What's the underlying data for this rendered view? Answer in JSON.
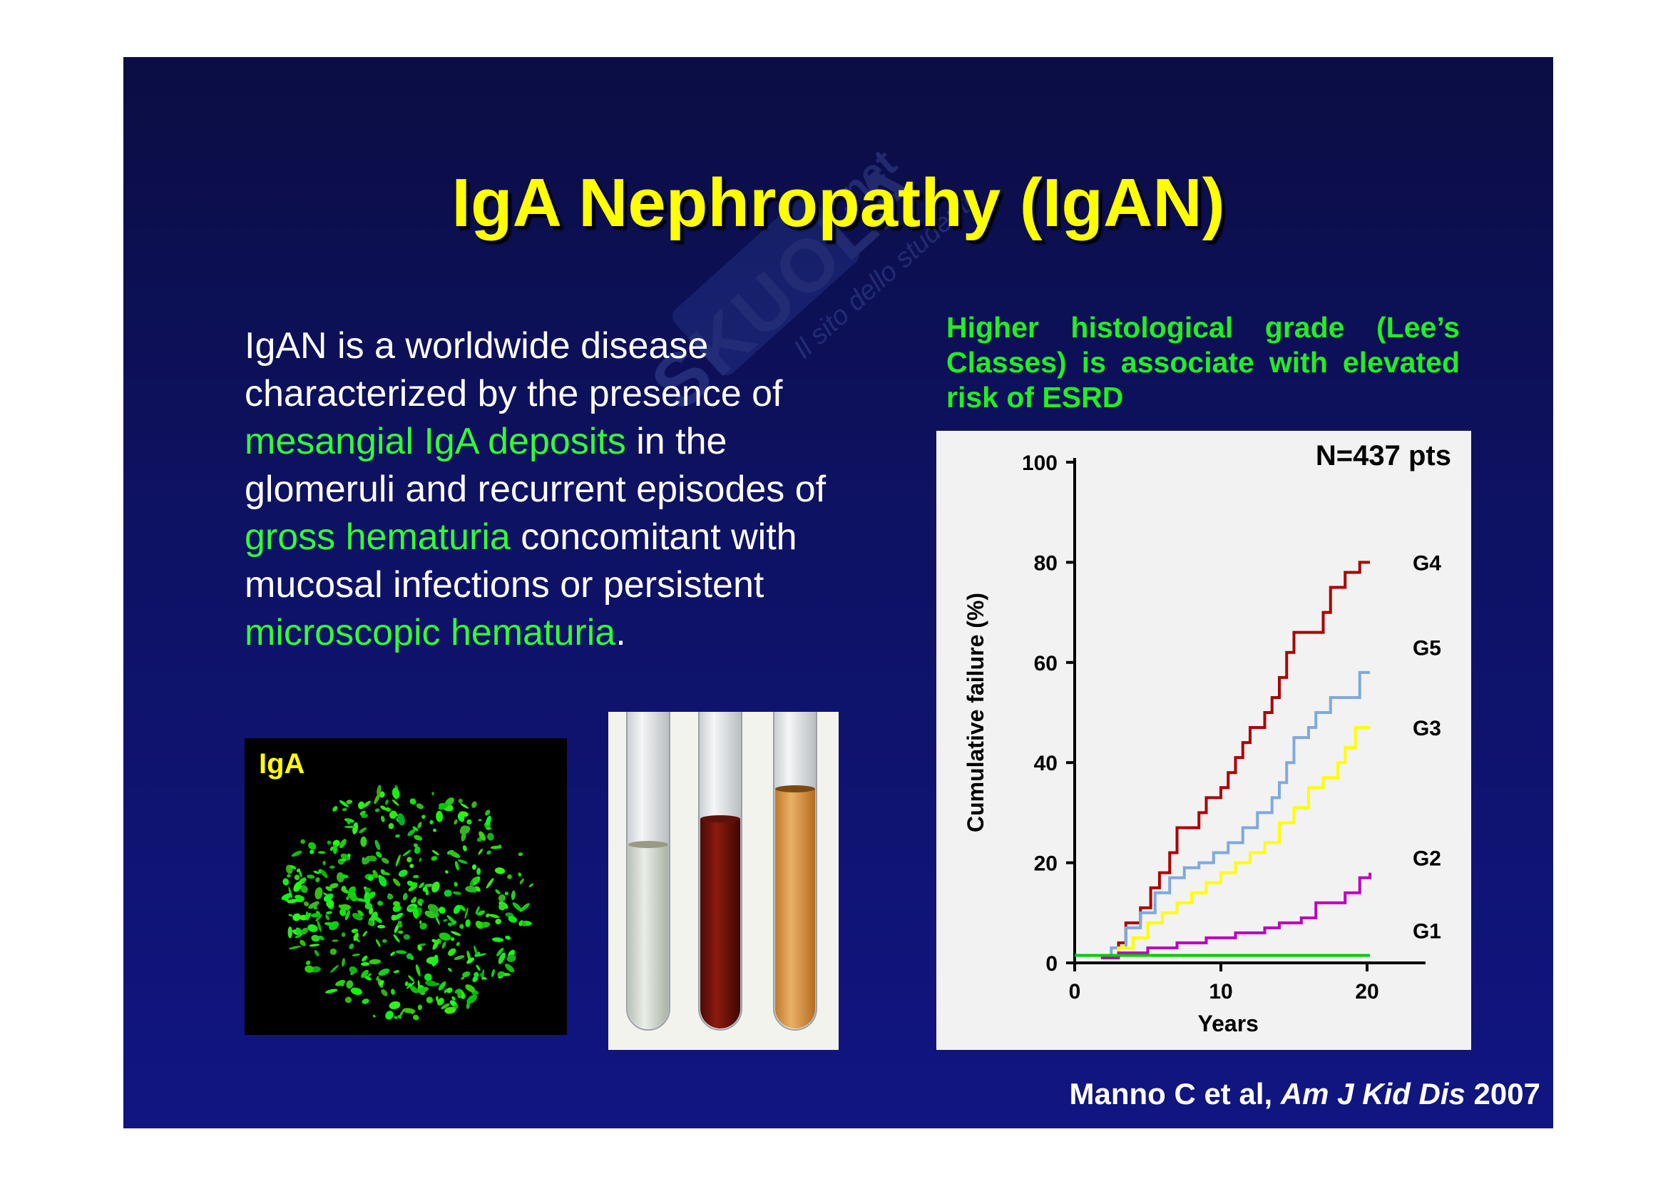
{
  "watermark": {
    "brand": "SKUOLA",
    "tld": ".net",
    "tagline": "Il sito dello studente"
  },
  "title": "IgA Nephropathy (IgAN)",
  "body": {
    "p1": "IgAN is a worldwide disease characterized by the presence of ",
    "hl1": "mesangial IgA deposits",
    "p2": " in the glomeruli and recurrent episodes of ",
    "hl2": "gross hematuria",
    "p3": " concomitant with mucosal infections or persistent ",
    "hl3": "microscopic hematuria",
    "p4": "."
  },
  "chart_heading": "Higher histological grade (Lee’s Classes) is associate with elevated risk of ESRD",
  "chart_data": {
    "type": "line",
    "annotation": "N=437 pts",
    "xlabel": "Years",
    "ylabel": "Cumulative failure (%)",
    "xlim": [
      0,
      24
    ],
    "ylim": [
      0,
      100
    ],
    "xticks": [
      0,
      10,
      20
    ],
    "yticks": [
      0,
      20,
      40,
      60,
      80,
      100
    ],
    "step": true,
    "series": [
      {
        "name": "G4",
        "color": "#aa0000",
        "x": [
          1.8,
          3,
          3.5,
          4.5,
          5.2,
          5.8,
          6.5,
          7,
          8.5,
          9,
          10,
          10.5,
          11,
          11.5,
          12,
          13,
          13.5,
          14,
          14.5,
          15,
          17,
          17.5,
          18.5,
          19.5,
          20.2
        ],
        "y": [
          1,
          4,
          8,
          11,
          15,
          18,
          22,
          27,
          30,
          33,
          35,
          38,
          41,
          44,
          47,
          50,
          53,
          57,
          62,
          66,
          70,
          75,
          78,
          80,
          80
        ]
      },
      {
        "name": "G5",
        "color": "#7fa9de",
        "x": [
          1.8,
          2.5,
          3.5,
          4.5,
          5.5,
          6.5,
          7.5,
          8.5,
          9.5,
          10.5,
          11.5,
          12.5,
          13.5,
          14,
          14.5,
          15,
          16,
          16.5,
          17.5,
          19.5,
          20.2
        ],
        "y": [
          1,
          3,
          7,
          10,
          14,
          17,
          19,
          20,
          22,
          24,
          27,
          30,
          33,
          36,
          40,
          45,
          47,
          50,
          53,
          58,
          58
        ]
      },
      {
        "name": "G3",
        "color": "#ffff00",
        "x": [
          1.8,
          3,
          4,
          5,
          6,
          7,
          8,
          9,
          10,
          11,
          12,
          13,
          14,
          15,
          16,
          17,
          18,
          18.5,
          19.2,
          20.2
        ],
        "y": [
          1,
          3,
          5,
          8,
          10,
          12,
          14,
          16,
          18,
          20,
          22,
          24,
          28,
          31,
          35,
          37,
          40,
          43,
          47,
          47
        ]
      },
      {
        "name": "G2",
        "color": "#bb00bb",
        "x": [
          1.8,
          3,
          5,
          7,
          9,
          11,
          13,
          14,
          15.5,
          16.5,
          18.5,
          19.5,
          20.2
        ],
        "y": [
          1,
          2,
          3,
          4,
          5,
          6,
          7,
          8,
          9,
          12,
          14,
          17,
          18
        ]
      },
      {
        "name": "G1",
        "color": "#00cc00",
        "x": [
          0,
          20.2
        ],
        "y": [
          1.5,
          1.5
        ]
      }
    ]
  },
  "iga_label": "IgA",
  "citation": {
    "authors": "Manno C et al, ",
    "journal": "Am J Kid Dis",
    "year": " 2007"
  }
}
